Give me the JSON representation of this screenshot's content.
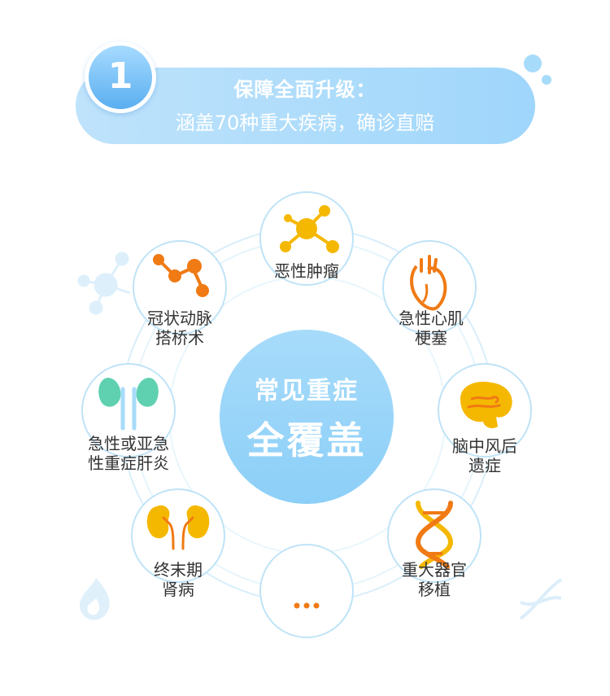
{
  "section": {
    "number": "1",
    "title": "保障全面升级：",
    "subtitle": "涵盖70种重大疾病，确诊直赔"
  },
  "center": {
    "line1": "常见重症",
    "line2": "全覆盖"
  },
  "diseases": [
    {
      "line1": "恶性肿瘤",
      "line2": "",
      "icon": "molecule-icon"
    },
    {
      "line1": "急性心肌",
      "line2": "梗塞",
      "icon": "heart-icon"
    },
    {
      "line1": "脑中风后",
      "line2": "遗症",
      "icon": "brain-icon"
    },
    {
      "line1": "重大器官",
      "line2": "移植",
      "icon": "dna-icon"
    },
    {
      "line1": "…",
      "line2": "",
      "icon": "more-icon"
    },
    {
      "line1": "终末期",
      "line2": "肾病",
      "icon": "kidney-icon"
    },
    {
      "line1": "急性或亚急",
      "line2": "性重症肝炎",
      "icon": "liver-icon"
    },
    {
      "line1": "冠状动脉",
      "line2": "搭桥术",
      "icon": "artery-icon"
    }
  ],
  "colors": {
    "accent": "#8ccff8",
    "orange": "#f07a14",
    "yellow": "#f5b800",
    "green": "#5fd1b0",
    "ring": "#d9eefb"
  }
}
